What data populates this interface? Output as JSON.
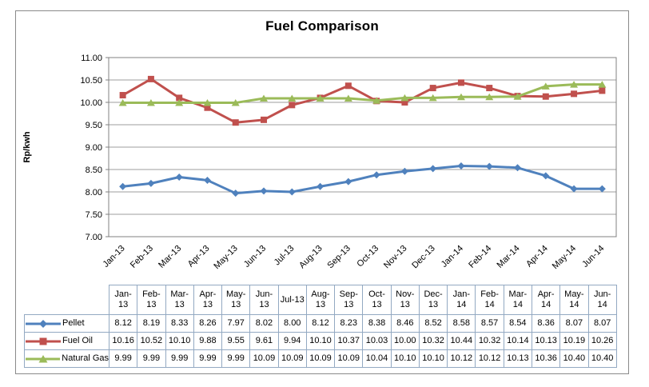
{
  "chart_data": {
    "type": "line",
    "title": "Fuel Comparison",
    "xlabel": "",
    "ylabel": "Rp/kwh",
    "ylim": [
      7.0,
      11.0
    ],
    "ytick_step": 0.5,
    "grid": true,
    "legend_position": "table-left",
    "categories": [
      "Jan-13",
      "Feb-13",
      "Mar-13",
      "Apr-13",
      "May-13",
      "Jun-13",
      "Jul-13",
      "Aug-13",
      "Sep-13",
      "Oct-13",
      "Nov-13",
      "Dec-13",
      "Jan-14",
      "Feb-14",
      "Mar-14",
      "Apr-14",
      "May-14",
      "Jun-14"
    ],
    "table_header_lines": [
      [
        "Jan-",
        "13"
      ],
      [
        "Feb-",
        "13"
      ],
      [
        "Mar-",
        "13"
      ],
      [
        "Apr-",
        "13"
      ],
      [
        "May-",
        "13"
      ],
      [
        "Jun-",
        "13"
      ],
      [
        "Jul-13"
      ],
      [
        "Aug-",
        "13"
      ],
      [
        "Sep-",
        "13"
      ],
      [
        "Oct-",
        "13"
      ],
      [
        "Nov-",
        "13"
      ],
      [
        "Dec-",
        "13"
      ],
      [
        "Jan-",
        "14"
      ],
      [
        "Feb-",
        "14"
      ],
      [
        "Mar-",
        "14"
      ],
      [
        "Apr-",
        "14"
      ],
      [
        "May-",
        "14"
      ],
      [
        "Jun-",
        "14"
      ]
    ],
    "series": [
      {
        "name": "Pellet",
        "marker": "diamond",
        "color": "#4F81BD",
        "values": [
          8.12,
          8.19,
          8.33,
          8.26,
          7.97,
          8.02,
          8.0,
          8.12,
          8.23,
          8.38,
          8.46,
          8.52,
          8.58,
          8.57,
          8.54,
          8.36,
          8.07,
          8.07
        ]
      },
      {
        "name": "Fuel Oil",
        "marker": "square",
        "color": "#C0504D",
        "values": [
          10.16,
          10.52,
          10.1,
          9.88,
          9.55,
          9.61,
          9.94,
          10.1,
          10.37,
          10.03,
          10.0,
          10.32,
          10.44,
          10.32,
          10.14,
          10.13,
          10.19,
          10.26
        ]
      },
      {
        "name": "Natural Gas",
        "marker": "triangle",
        "color": "#9BBB59",
        "values": [
          9.99,
          9.99,
          9.99,
          9.99,
          9.99,
          10.09,
          10.09,
          10.09,
          10.09,
          10.04,
          10.1,
          10.1,
          10.12,
          10.12,
          10.13,
          10.36,
          10.4,
          10.4
        ]
      }
    ]
  }
}
